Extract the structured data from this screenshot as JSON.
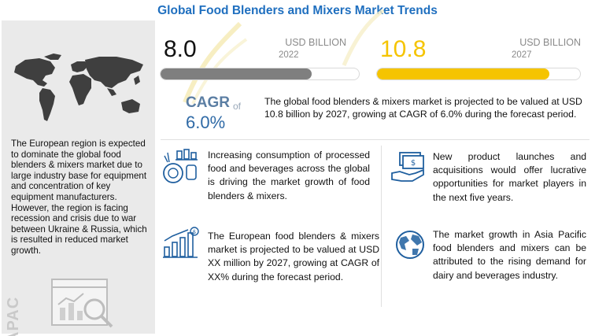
{
  "title": "Global Food Blenders and Mixers Market Trends",
  "left": {
    "europe_text": "The European region is expected to dominate the global food blenders & mixers market due to large industry base for equipment  and concentration of key equipment manufacturers. However, the region is facing recession and crisis due to war between Ukraine & Russia, which is resulted in reduced market growth.",
    "apac_label": "APAC",
    "icons": [
      "world-map",
      "chart-magnifier-icon"
    ]
  },
  "market": {
    "start": {
      "value": "8.0",
      "unit": "USD BILLION",
      "year": "2022",
      "bar_fraction": 0.76
    },
    "end": {
      "value": "10.8",
      "unit": "USD BILLION",
      "year": "2027",
      "bar_fraction": 0.85
    },
    "cagr_label": "CAGR",
    "cagr_of": "of",
    "cagr_value": "6.0%",
    "summary": "The global food blenders & mixers market is projected to be valued at USD 10.8 billion by 2027, growing at CAGR of 6.0% during the forecast period."
  },
  "facts": [
    {
      "icon": "food-chart-icon",
      "text": "Increasing consumption of processed food and beverages across the global is driving the market growth of food blenders & mixers."
    },
    {
      "icon": "money-hand-icon",
      "text": "New product launches and acquisitions would offer lucrative opportunities for market players in the next five years."
    },
    {
      "icon": "rising-bars-icon",
      "text": "The European food blenders & mixers market is projected to be valued at USD XX million by 2027, growing at CAGR of XX% during the forecast period."
    },
    {
      "icon": "globe-icon",
      "text": "The market growth in Asia Pacific food blenders and mixers can be attributed to the rising demand for dairy and beverages industry."
    }
  ],
  "colors": {
    "title": "#1f6fbf",
    "bar_2022": "#7f7f7f",
    "bar_2027": "#f5c400",
    "cagr": "#2f6aa6",
    "panel": "#eaeaea"
  },
  "chart_data": {
    "type": "bar",
    "categories": [
      "2022",
      "2027"
    ],
    "values": [
      8.0,
      10.8
    ],
    "title": "Global Food Blenders and Mixers Market Trends",
    "xlabel": "",
    "ylabel": "USD BILLION",
    "cagr": "6.0%"
  }
}
